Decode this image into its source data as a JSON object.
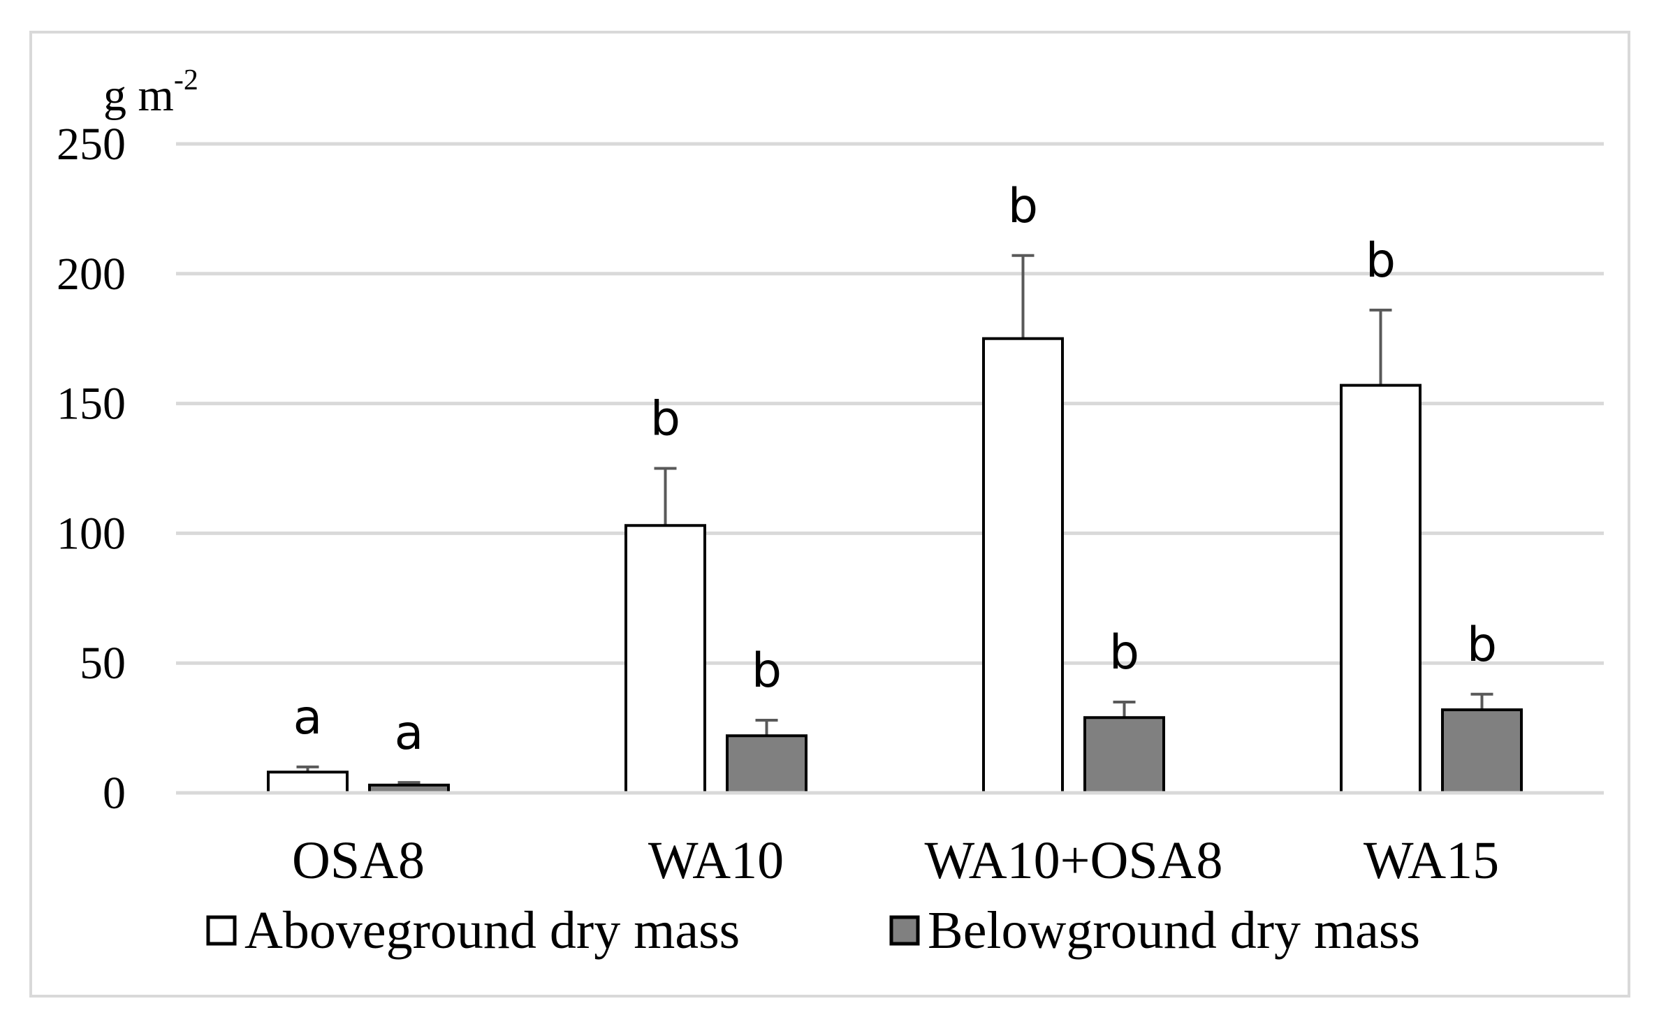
{
  "chart_data": {
    "type": "bar",
    "title": "",
    "ylabel": "g m",
    "ylabel_superscript": "-2",
    "xlabel": "",
    "ylim": [
      0,
      250
    ],
    "yticks": [
      0,
      50,
      100,
      150,
      200,
      250
    ],
    "grid": true,
    "legend_position": "bottom",
    "categories": [
      "OSA8",
      "WA10",
      "WA10+OSA8",
      "WA15"
    ],
    "series": [
      {
        "name": "Aboveground dry mass",
        "color": "#ffffff",
        "values": [
          8,
          103,
          175,
          157
        ],
        "errors": [
          2,
          22,
          32,
          29
        ],
        "letters": [
          "a",
          "b",
          "b",
          "b"
        ]
      },
      {
        "name": "Belowground dry mass",
        "color": "#808080",
        "values": [
          3,
          22,
          29,
          32
        ],
        "errors": [
          1,
          6,
          6,
          6
        ],
        "letters": [
          "a",
          "b",
          "b",
          "b"
        ]
      }
    ]
  },
  "colors": {
    "gridline": "#d9d9d9",
    "bar_outline": "#000000",
    "error_bar": "#595959",
    "axis_line": "#d9d9d9",
    "text": "#000000"
  }
}
